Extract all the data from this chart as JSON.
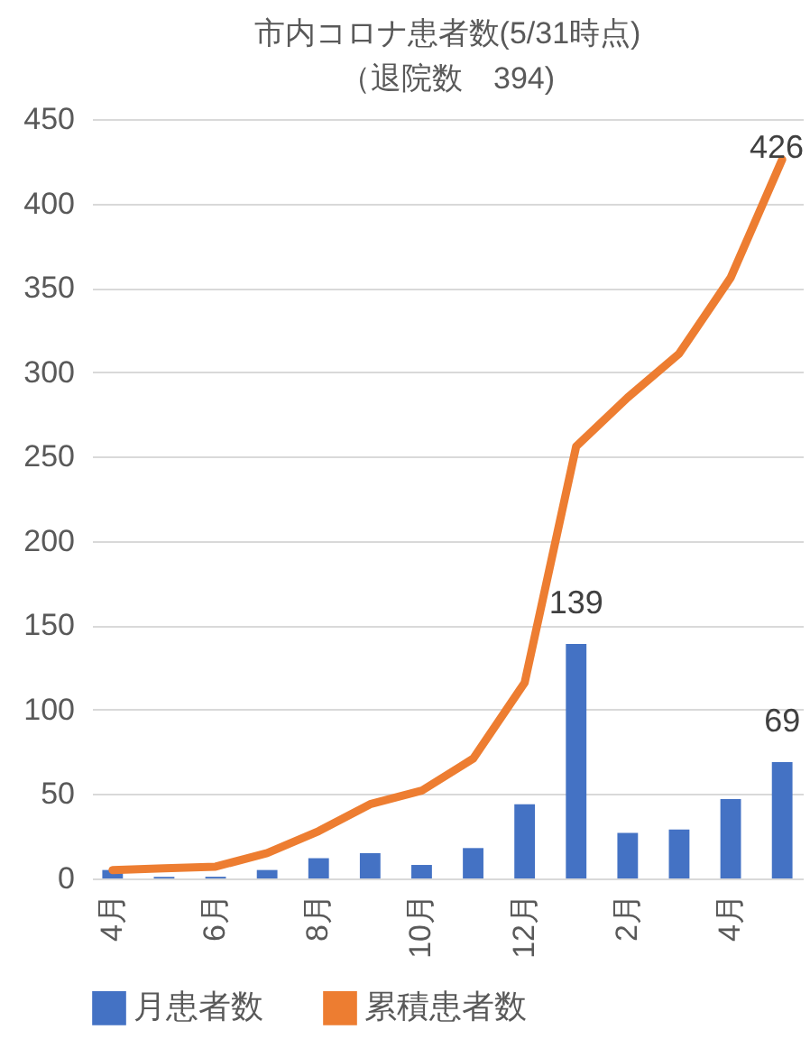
{
  "chart_data": {
    "type": "bar",
    "title": "市内コロナ患者数(5/31時点)",
    "subtitle": "（退院数　394)",
    "categories": [
      "4月",
      null,
      "6月",
      null,
      "8月",
      null,
      "10月",
      null,
      "12月",
      null,
      "2月",
      null,
      "4月",
      null
    ],
    "series": [
      {
        "name": "月患者数",
        "color": "#4472c4",
        "values": [
          5,
          1,
          1,
          5,
          12,
          15,
          8,
          18,
          44,
          139,
          27,
          29,
          47,
          69
        ],
        "value_labels": [
          null,
          null,
          null,
          null,
          null,
          null,
          null,
          null,
          null,
          "139",
          null,
          null,
          null,
          "69"
        ]
      },
      {
        "name": "累積患者数",
        "type": "line",
        "color": "#ed7d31",
        "values": [
          5,
          6,
          7,
          15,
          28,
          44,
          52,
          71,
          116,
          256,
          285,
          311,
          356,
          426
        ],
        "value_labels": [
          null,
          null,
          null,
          null,
          null,
          null,
          null,
          null,
          null,
          null,
          null,
          null,
          null,
          "426"
        ]
      }
    ],
    "ylim": [
      0,
      450
    ],
    "yticks": [
      0,
      50,
      100,
      150,
      200,
      250,
      300,
      350,
      400,
      450
    ],
    "grid": "y",
    "legend": "bottom",
    "marker": "none",
    "line_style": "solid"
  }
}
